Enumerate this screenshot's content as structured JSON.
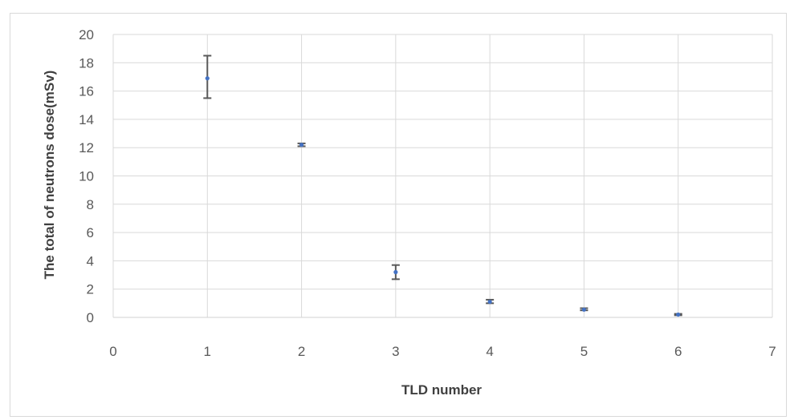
{
  "chart_data": {
    "type": "scatter",
    "title": "",
    "xlabel": "TLD number",
    "ylabel": "The total of neutrons dose(mSv)",
    "xlim": [
      0,
      7
    ],
    "ylim": [
      0,
      20
    ],
    "x_ticks": [
      0,
      1,
      2,
      3,
      4,
      5,
      6,
      7
    ],
    "y_ticks": [
      0,
      2,
      4,
      6,
      8,
      10,
      12,
      14,
      16,
      18,
      20
    ],
    "grid": true,
    "legend": "none",
    "series": [
      {
        "x": [
          1,
          2,
          3,
          4,
          5,
          6
        ],
        "y": [
          16.9,
          12.2,
          3.2,
          1.1,
          0.55,
          0.2
        ],
        "error_low": [
          15.5,
          12.1,
          2.7,
          1.0,
          0.5,
          0.15
        ],
        "error_high": [
          18.5,
          12.3,
          3.7,
          1.25,
          0.65,
          0.25
        ],
        "marker_color": "#4472c4",
        "error_bar_color": "#595959"
      }
    ]
  },
  "colors": {
    "grid": "#d9d9d9",
    "axis": "#d9d9d9",
    "frame": "#d9d9d9"
  }
}
